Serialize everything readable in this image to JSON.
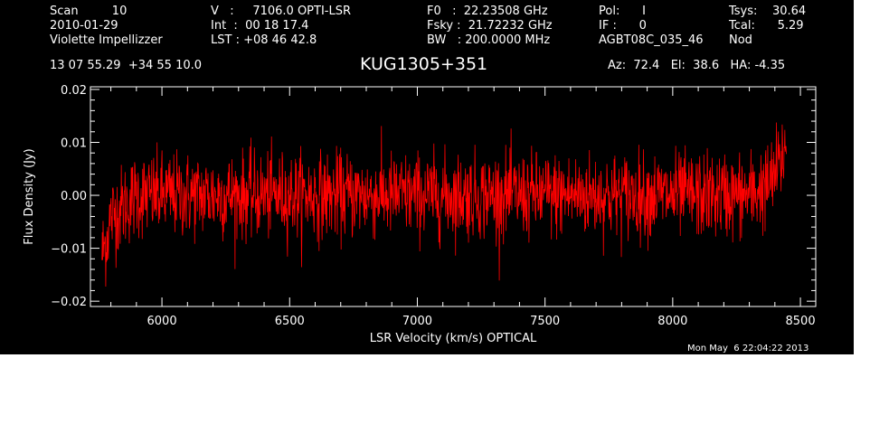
{
  "header": {
    "col1": {
      "line1": "Scan         10",
      "line2": "2010-01-29",
      "line3": "Violette Impellizzer"
    },
    "col2": {
      "line1": "V   :     7106.0 OPTI-LSR",
      "line2": "Int  :  00 18 17.4",
      "line3": "LST : +08 46 42.8"
    },
    "col3": {
      "line1": "F0   :  22.23508 GHz",
      "line2": "Fsky :  21.72232 GHz",
      "line3": "BW   : 200.0000 MHz"
    },
    "col4": {
      "line1": "Pol:      I",
      "line2": "IF :      0",
      "line3": "AGBT08C_035_46"
    },
    "col5": {
      "line1": "Tsys:    30.64",
      "line2": "Tcal:      5.29",
      "line3": "Nod"
    },
    "coords": "13 07 55.29  +34 55 10.0",
    "source_name": "KUG1305+351",
    "pointing": "Az:  72.4   El:  38.6   HA: -4.35",
    "timestamp": "Mon May  6 22:04:22 2013"
  },
  "colors": {
    "background": "#000000",
    "axes": "#ffffff",
    "trace": "#ff0000"
  },
  "chart_data": {
    "type": "line",
    "xlabel": "LSR Velocity (km/s) OPTICAL",
    "ylabel": "Flux Density (Jy)",
    "xlim": [
      5720,
      8560
    ],
    "ylim": [
      -0.021,
      0.0205
    ],
    "x_ticks": [
      6000,
      6500,
      7000,
      7500,
      8000,
      8500
    ],
    "x_tick_labels": [
      "6000",
      "6500",
      "7000",
      "7500",
      "8000",
      "8500"
    ],
    "y_ticks": [
      -0.02,
      -0.01,
      0.0,
      0.01,
      0.02
    ],
    "y_tick_labels": [
      "−0.02",
      "−0.01",
      "0.00",
      "0.01",
      "0.02"
    ],
    "grid": false,
    "series": [
      {
        "color": "#ff0000",
        "x_start": 5765,
        "x_end": 8445,
        "noise_rms": 0.004,
        "anchor_points": [
          [
            5765,
            -0.011
          ],
          [
            5780,
            -0.009
          ],
          [
            5800,
            -0.004
          ],
          [
            5850,
            -0.002
          ],
          [
            5900,
            0.0
          ],
          [
            6000,
            0.0
          ],
          [
            6500,
            0.0
          ],
          [
            7000,
            0.0
          ],
          [
            7500,
            0.0
          ],
          [
            8000,
            0.0
          ],
          [
            8300,
            0.0
          ],
          [
            8380,
            0.002
          ],
          [
            8420,
            0.006
          ],
          [
            8435,
            0.008
          ],
          [
            8445,
            0.01
          ]
        ]
      }
    ]
  }
}
